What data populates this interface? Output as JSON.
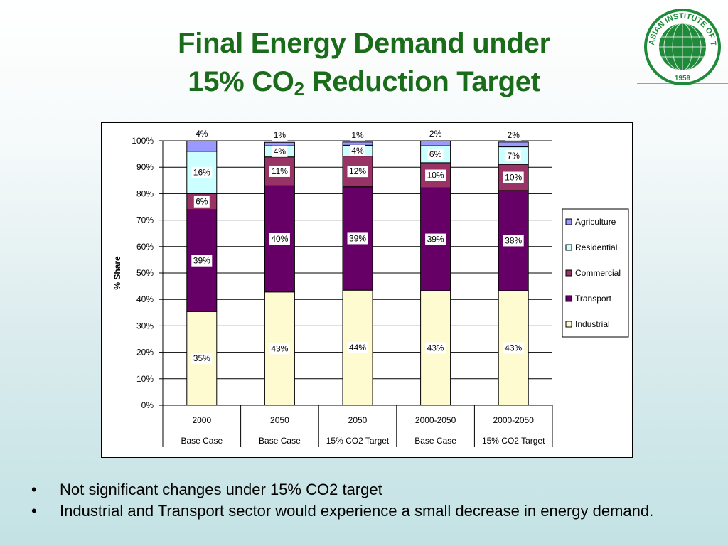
{
  "slide": {
    "title_line1": "Final Energy Demand under",
    "title_line2_prefix": "15% CO",
    "title_line2_sub": "2",
    "title_line2_suffix": " Reduction Target"
  },
  "logo": {
    "text_top": "ASIAN INSTITUTE OF TECHNOLOGY",
    "year": "1959",
    "color": "#1e8a3a"
  },
  "bullets": [
    {
      "marker": "•",
      "text": "Not significant changes under 15% CO2 target"
    },
    {
      "marker": "•",
      "text": "Industrial and Transport sector would experience a small decrease in energy demand."
    }
  ],
  "chart_data": {
    "type": "bar",
    "stacked": true,
    "ylabel": "% Share",
    "ylim": [
      0,
      100
    ],
    "y_ticks": [
      "0%",
      "10%",
      "20%",
      "30%",
      "40%",
      "50%",
      "60%",
      "70%",
      "80%",
      "90%",
      "100%"
    ],
    "grid": true,
    "legend_position": "right",
    "categories": [
      {
        "line1": "2000",
        "line2": "Base Case"
      },
      {
        "line1": "2050",
        "line2": "Base Case"
      },
      {
        "line1": "2050",
        "line2": "15% CO2 Target"
      },
      {
        "line1": "2000-2050",
        "line2": "Base Case"
      },
      {
        "line1": "2000-2050",
        "line2": "15% CO2 Target"
      }
    ],
    "series": [
      {
        "name": "Industrial",
        "color": "#fffbd0",
        "values": [
          35.4,
          42.8,
          43.5,
          43.3,
          43.3
        ],
        "labels": [
          "35%",
          "43%",
          "44%",
          "43%",
          "43%"
        ]
      },
      {
        "name": "Transport",
        "color": "#660066",
        "values": [
          38.5,
          40.2,
          39.1,
          38.9,
          37.9
        ],
        "labels": [
          "39%",
          "40%",
          "39%",
          "39%",
          "38%"
        ]
      },
      {
        "name": "Commercial",
        "color": "#993366",
        "values": [
          6.1,
          10.9,
          11.6,
          9.5,
          9.9
        ],
        "labels": [
          "6%",
          "11%",
          "12%",
          "10%",
          "10%"
        ]
      },
      {
        "name": "Residential",
        "color": "#ccffff",
        "values": [
          16.0,
          4.2,
          4.1,
          6.4,
          6.6
        ],
        "labels": [
          "16%",
          "4%",
          "4%",
          "6%",
          "7%"
        ]
      },
      {
        "name": "Agriculture",
        "color": "#9999ff",
        "values": [
          4.0,
          1.3,
          1.2,
          1.9,
          1.8
        ],
        "labels": [
          "4%",
          "1%",
          "1%",
          "2%",
          "2%"
        ]
      }
    ],
    "legend_order": [
      "Agriculture",
      "Residential",
      "Commercial",
      "Transport",
      "Industrial"
    ]
  }
}
